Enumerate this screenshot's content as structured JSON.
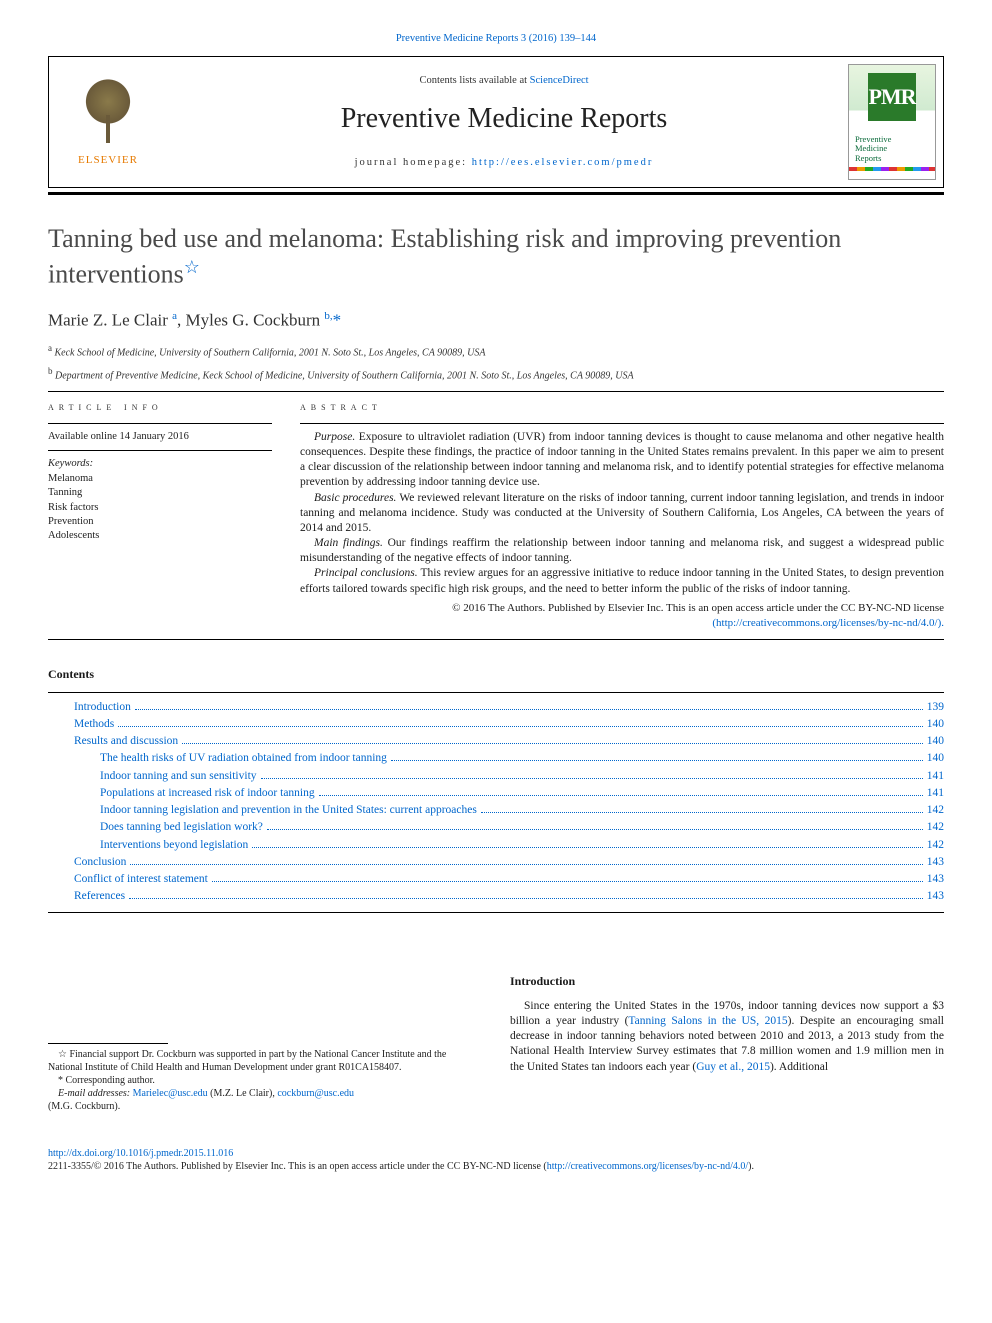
{
  "colors": {
    "link": "#0066cc",
    "text": "#1a1a1a",
    "title_gray": "#4a4a4a",
    "elsevier_orange": "#e67a00",
    "pmr_green": "#2a7a2a",
    "pmr_text": "#0a6a3a"
  },
  "typography": {
    "body_family": "Georgia, 'Times New Roman', serif",
    "body_size_pt": 9,
    "title_size_pt": 20,
    "journal_size_pt": 21,
    "authors_size_pt": 13
  },
  "top_citation": "Preventive Medicine Reports 3 (2016) 139–144",
  "header": {
    "contents_prefix": "Contents lists available at ",
    "contents_link": "ScienceDirect",
    "journal_name": "Preventive Medicine Reports",
    "homepage_prefix": "journal homepage: ",
    "homepage_url": "http://ees.elsevier.com/pmedr",
    "elsevier_label": "ELSEVIER",
    "pmr_badge": "PMR",
    "pmr_cover_line1": "Preventive",
    "pmr_cover_line2": "Medicine",
    "pmr_cover_line3": "Reports"
  },
  "article": {
    "title": "Tanning bed use and melanoma: Establishing risk and improving prevention interventions",
    "title_star": "☆",
    "authors_html": "Marie Z. Le Clair <sup>a</sup>, Myles G. Cockburn <sup>b,</sup><span class='corr-star'>*</span>",
    "affiliations": [
      {
        "sup": "a",
        "text": "Keck School of Medicine, University of Southern California, 2001 N. Soto St., Los Angeles, CA 90089, USA"
      },
      {
        "sup": "b",
        "text": "Department of Preventive Medicine, Keck School of Medicine, University of Southern California, 2001 N. Soto St., Los Angeles, CA 90089, USA"
      }
    ]
  },
  "article_info": {
    "head": "article info",
    "available": "Available online 14 January 2016",
    "kw_head": "Keywords:",
    "keywords": [
      "Melanoma",
      "Tanning",
      "Risk factors",
      "Prevention",
      "Adolescents"
    ]
  },
  "abstract": {
    "head": "abstract",
    "paras": [
      {
        "run": "Purpose.",
        "body": " Exposure to ultraviolet radiation (UVR) from indoor tanning devices is thought to cause melanoma and other negative health consequences. Despite these findings, the practice of indoor tanning in the United States remains prevalent. In this paper we aim to present a clear discussion of the relationship between indoor tanning and melanoma risk, and to identify potential strategies for effective melanoma prevention by addressing indoor tanning device use."
      },
      {
        "run": "Basic procedures.",
        "body": " We reviewed relevant literature on the risks of indoor tanning, current indoor tanning legislation, and trends in indoor tanning and melanoma incidence. Study was conducted at the University of Southern California, Los Angeles, CA between the years of 2014 and 2015."
      },
      {
        "run": "Main findings.",
        "body": " Our findings reaffirm the relationship between indoor tanning and melanoma risk, and suggest a widespread public misunderstanding of the negative effects of indoor tanning."
      },
      {
        "run": "Principal conclusions.",
        "body": " This review argues for an aggressive initiative to reduce indoor tanning in the United States, to design prevention efforts tailored towards specific high risk groups, and the need to better inform the public of the risks of indoor tanning."
      }
    ],
    "copyright_line": "© 2016 The Authors. Published by Elsevier Inc. This is an open access article under the CC BY-NC-ND license",
    "license_url_disp": "(http://creativecommons.org/licenses/by-nc-nd/4.0/)."
  },
  "toc": {
    "head": "Contents",
    "items": [
      {
        "label": "Introduction",
        "page": "139",
        "indent": 1
      },
      {
        "label": "Methods",
        "page": "140",
        "indent": 1
      },
      {
        "label": "Results and discussion",
        "page": "140",
        "indent": 1
      },
      {
        "label": "The health risks of UV radiation obtained from indoor tanning",
        "page": "140",
        "indent": 2
      },
      {
        "label": "Indoor tanning and sun sensitivity",
        "page": "141",
        "indent": 2
      },
      {
        "label": "Populations at increased risk of indoor tanning",
        "page": "141",
        "indent": 2
      },
      {
        "label": "Indoor tanning legislation and prevention in the United States: current approaches",
        "page": "142",
        "indent": 2
      },
      {
        "label": "Does tanning bed legislation work?",
        "page": "142",
        "indent": 2
      },
      {
        "label": "Interventions beyond legislation",
        "page": "142",
        "indent": 2
      },
      {
        "label": "Conclusion",
        "page": "143",
        "indent": 1
      },
      {
        "label": "Conflict of interest statement",
        "page": "143",
        "indent": 1
      },
      {
        "label": "References",
        "page": "143",
        "indent": 1
      }
    ]
  },
  "footnotes": {
    "funding_sym": "☆",
    "funding": " Financial support Dr. Cockburn was supported in part by the National Cancer Institute and the National Institute of Child Health and Human Development under grant R01CA158407.",
    "corr_sym": "*",
    "corr": " Corresponding author.",
    "email_label": "E-mail addresses: ",
    "email1": "Marielec@usc.edu",
    "email1_who": " (M.Z. Le Clair), ",
    "email2": "cockburn@usc.edu",
    "email2_who": "(M.G. Cockburn)."
  },
  "intro": {
    "head": "Introduction",
    "text_pre": "Since entering the United States in the 1970s, indoor tanning devices now support a $3 billion a year industry (",
    "cite1": "Tanning Salons in the US, 2015",
    "text_mid": "). Despite an encouraging small decrease in indoor tanning behaviors noted between 2010 and 2013, a 2013 study from the National Health Interview Survey estimates that 7.8 million women and 1.9 million men in the United States tan indoors each year (",
    "cite2": "Guy et al., 2015",
    "text_post": "). Additional"
  },
  "footer": {
    "doi": "http://dx.doi.org/10.1016/j.pmedr.2015.11.016",
    "line2_pre": "2211-3355/© 2016 The Authors. Published by Elsevier Inc. This is an open access article under the CC BY-NC-ND license (",
    "line2_url": "http://creativecommons.org/licenses/by-nc-nd/4.0/",
    "line2_post": ")."
  }
}
